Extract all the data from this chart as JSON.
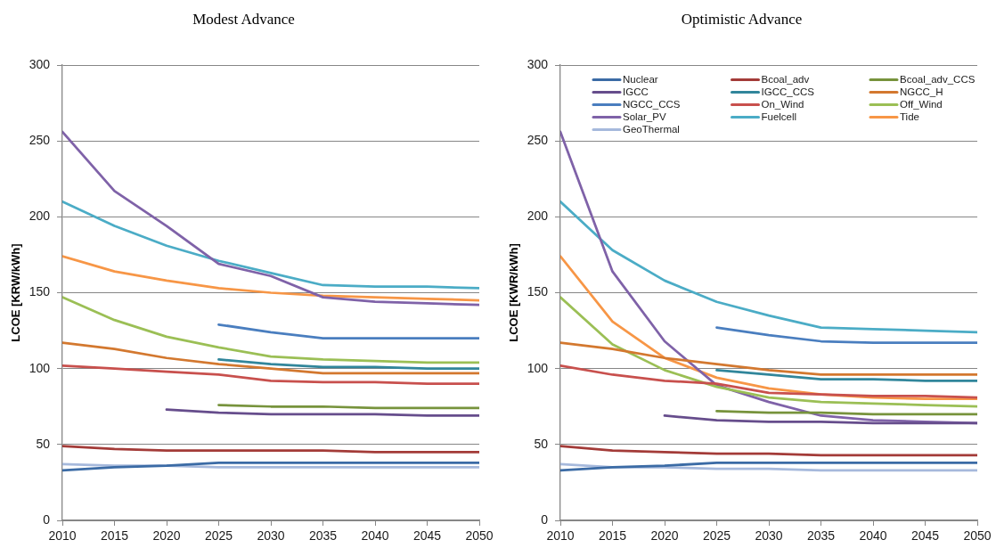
{
  "chart_data": [
    {
      "type": "line",
      "title": "Modest Advance",
      "ylabel": "LCOE [KRW/kWh]",
      "x": [
        2010,
        2015,
        2020,
        2025,
        2030,
        2035,
        2040,
        2045,
        2050
      ],
      "xlim": [
        2010,
        2050
      ],
      "xticks": [
        2010,
        2015,
        2020,
        2025,
        2030,
        2035,
        2040,
        2045,
        2050
      ],
      "ylim": [
        0,
        300
      ],
      "yticks": [
        0,
        50,
        100,
        150,
        200,
        250,
        300
      ],
      "grid": "y",
      "legend": false,
      "series": [
        {
          "color": "#3b6ba5",
          "values": [
            33,
            35,
            36,
            38,
            38,
            38,
            38,
            38,
            38
          ]
        },
        {
          "color": "#a33b38",
          "values": [
            49,
            47,
            46,
            46,
            46,
            46,
            45,
            45,
            45
          ]
        },
        {
          "color": "#77933c",
          "values": [
            null,
            null,
            null,
            76,
            75,
            75,
            74,
            74,
            74
          ]
        },
        {
          "color": "#664d8c",
          "values": [
            null,
            null,
            73,
            71,
            70,
            70,
            70,
            69,
            69
          ]
        },
        {
          "color": "#31869b",
          "values": [
            null,
            null,
            null,
            106,
            103,
            101,
            101,
            100,
            100
          ]
        },
        {
          "color": "#d3782f",
          "values": [
            117,
            113,
            107,
            103,
            100,
            97,
            97,
            97,
            97
          ]
        },
        {
          "color": "#4a7ebf",
          "values": [
            null,
            null,
            null,
            129,
            124,
            120,
            120,
            120,
            120
          ]
        },
        {
          "color": "#c8504d",
          "values": [
            102,
            100,
            98,
            96,
            92,
            91,
            91,
            90,
            90
          ]
        },
        {
          "color": "#9bbf55",
          "values": [
            147,
            132,
            121,
            114,
            108,
            106,
            105,
            104,
            104
          ]
        },
        {
          "color": "#7f62a8",
          "values": [
            256,
            217,
            194,
            169,
            161,
            147,
            144,
            143,
            142
          ]
        },
        {
          "color": "#4bacc6",
          "values": [
            210,
            194,
            181,
            171,
            163,
            155,
            154,
            154,
            153
          ]
        },
        {
          "color": "#f79646",
          "values": [
            174,
            164,
            158,
            153,
            150,
            148,
            147,
            146,
            145
          ]
        },
        {
          "color": "#a6b9dc",
          "values": [
            37,
            36,
            36,
            35,
            35,
            35,
            35,
            35,
            35
          ]
        }
      ]
    },
    {
      "type": "line",
      "title": "Optimistic Advance",
      "ylabel": "LCOE [KWR/kWh]",
      "x": [
        2010,
        2015,
        2020,
        2025,
        2030,
        2035,
        2040,
        2045,
        2050
      ],
      "xlim": [
        2010,
        2050
      ],
      "xticks": [
        2010,
        2015,
        2020,
        2025,
        2030,
        2035,
        2040,
        2045,
        2050
      ],
      "ylim": [
        0,
        300
      ],
      "yticks": [
        0,
        50,
        100,
        150,
        200,
        250,
        300
      ],
      "grid": "y",
      "legend": "top",
      "series": [
        {
          "name": "Nuclear",
          "color": "#3b6ba5",
          "values": [
            33,
            35,
            36,
            38,
            38,
            38,
            38,
            38,
            38
          ]
        },
        {
          "name": "Bcoal_adv",
          "color": "#a33b38",
          "values": [
            49,
            46,
            45,
            44,
            44,
            43,
            43,
            43,
            43
          ]
        },
        {
          "name": "Bcoal_adv_CCS",
          "color": "#77933c",
          "values": [
            null,
            null,
            null,
            72,
            71,
            71,
            70,
            70,
            70
          ]
        },
        {
          "name": "IGCC",
          "color": "#664d8c",
          "values": [
            null,
            null,
            69,
            66,
            65,
            65,
            64,
            64,
            64
          ]
        },
        {
          "name": "IGCC_CCS",
          "color": "#31869b",
          "values": [
            null,
            null,
            null,
            99,
            96,
            93,
            93,
            92,
            92
          ]
        },
        {
          "name": "NGCC_H",
          "color": "#d3782f",
          "values": [
            117,
            113,
            107,
            103,
            99,
            96,
            96,
            96,
            96
          ]
        },
        {
          "name": "NGCC_CCS",
          "color": "#4a7ebf",
          "values": [
            null,
            null,
            null,
            127,
            122,
            118,
            117,
            117,
            117
          ]
        },
        {
          "name": "On_Wind",
          "color": "#c8504d",
          "values": [
            102,
            96,
            92,
            90,
            84,
            83,
            82,
            82,
            81
          ]
        },
        {
          "name": "Off_Wind",
          "color": "#9bbf55",
          "values": [
            147,
            116,
            99,
            88,
            81,
            78,
            77,
            76,
            75
          ]
        },
        {
          "name": "Solar_PV",
          "color": "#7f62a8",
          "values": [
            256,
            164,
            118,
            89,
            78,
            69,
            66,
            65,
            64
          ]
        },
        {
          "name": "Fuelcell",
          "color": "#4bacc6",
          "values": [
            210,
            178,
            158,
            144,
            135,
            127,
            126,
            125,
            124
          ]
        },
        {
          "name": "Tide",
          "color": "#f79646",
          "values": [
            174,
            131,
            107,
            94,
            87,
            83,
            81,
            80,
            80
          ]
        },
        {
          "name": "GeoThermal",
          "color": "#a6b9dc",
          "values": [
            37,
            35,
            35,
            34,
            34,
            33,
            33,
            33,
            33
          ]
        }
      ]
    }
  ]
}
